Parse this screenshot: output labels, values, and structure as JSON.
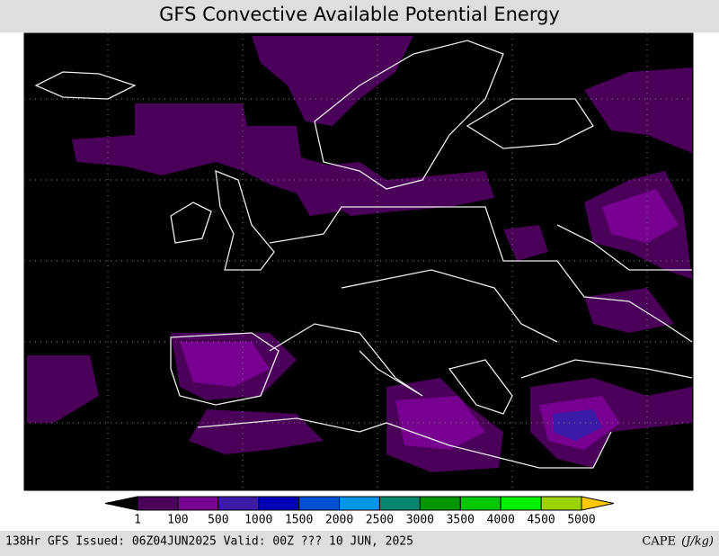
{
  "title": "GFS Convective Available Potential Energy",
  "colorbar": {
    "ticks": [
      1,
      100,
      500,
      1000,
      1500,
      2000,
      2500,
      3000,
      3500,
      4000,
      4500,
      5000
    ],
    "colors": [
      "#000000",
      "#4a0058",
      "#780090",
      "#3c1aa8",
      "#0000b4",
      "#0050d2",
      "#0096e6",
      "#00876e",
      "#009600",
      "#00c800",
      "#00f000",
      "#9bd200",
      "#ffc800"
    ]
  },
  "footer": {
    "left": "138Hr GFS Issued: 06Z04JUN2025 Valid: 00Z ??? 10 JUN, 2025",
    "label": "CAPE",
    "unit": "(J/kg)"
  }
}
